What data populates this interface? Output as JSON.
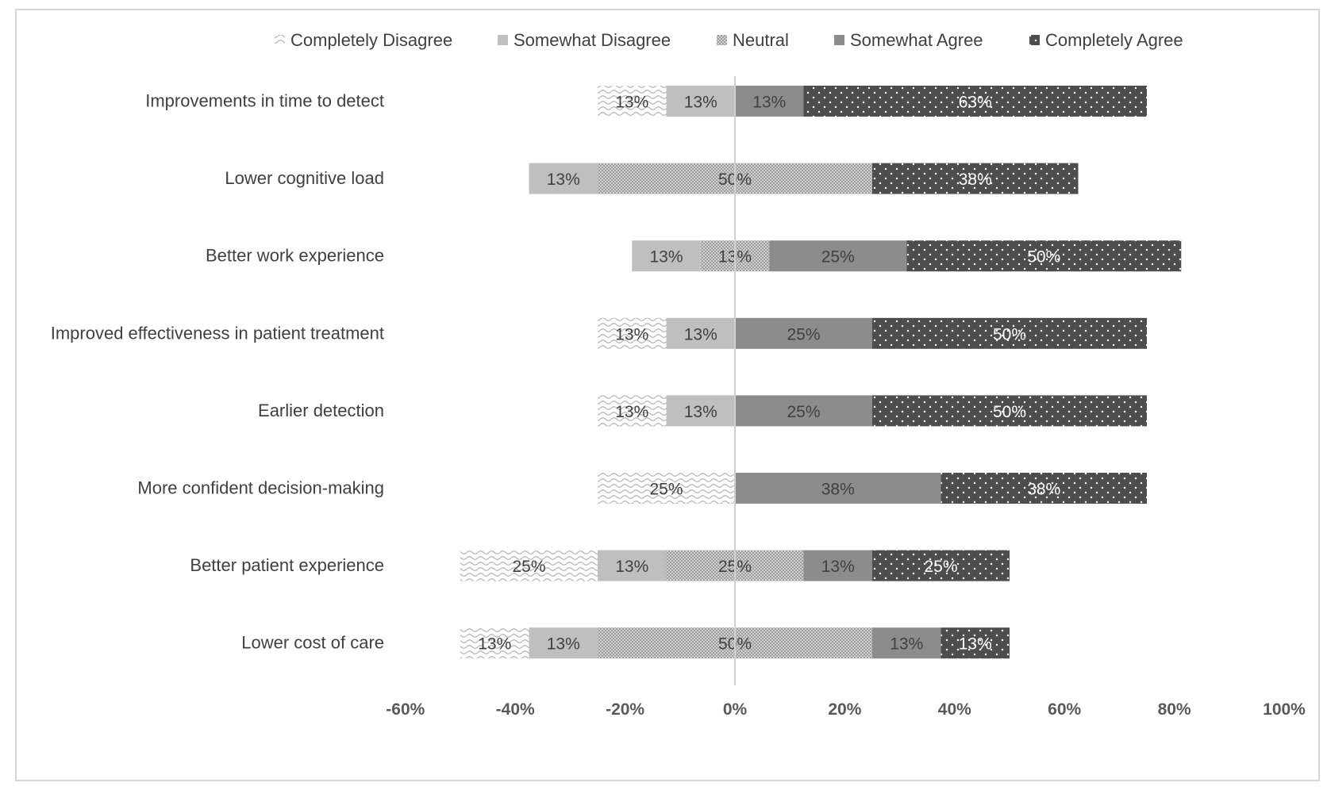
{
  "chart_data": {
    "type": "bar",
    "orientation": "horizontal",
    "stacking": "diverging",
    "title": "",
    "xlabel": "",
    "ylabel": "",
    "xlim": [
      -60,
      100
    ],
    "x_ticks": [
      -60,
      -40,
      -20,
      0,
      20,
      40,
      60,
      80,
      100
    ],
    "x_tick_labels": [
      "-60%",
      "-40%",
      "-20%",
      "0%",
      "20%",
      "40%",
      "60%",
      "80%",
      "100%"
    ],
    "grid": false,
    "legend_position": "top",
    "categories": [
      "Improvements in time to detect",
      "Lower cognitive load",
      "Better work experience",
      "Improved effectiveness in patient treatment",
      "Earlier detection",
      "More confident decision-making",
      "Better patient experience",
      "Lower cost of care"
    ],
    "series": [
      {
        "name": "Completely Disagree",
        "color": "#d9d9d9",
        "pattern": "wave",
        "values": [
          12.5,
          0,
          0,
          12.5,
          12.5,
          25,
          25,
          12.5
        ],
        "labels": [
          "13%",
          "",
          "",
          "13%",
          "13%",
          "25%",
          "25%",
          "13%"
        ]
      },
      {
        "name": "Somewhat Disagree",
        "color": "#bfbfbf",
        "pattern": "solid",
        "values": [
          12.5,
          12.5,
          12.5,
          12.5,
          12.5,
          0,
          12.5,
          12.5
        ],
        "labels": [
          "13%",
          "13%",
          "13%",
          "13%",
          "13%",
          "",
          "13%",
          "13%"
        ]
      },
      {
        "name": "Neutral",
        "color": "#ababab",
        "pattern": "checker",
        "values": [
          0,
          50,
          12.5,
          0,
          0,
          0,
          25,
          50
        ],
        "labels": [
          "",
          "50%",
          "13%",
          "",
          "",
          "",
          "25%",
          "50%"
        ]
      },
      {
        "name": "Somewhat Agree",
        "color": "#8c8c8c",
        "pattern": "solid",
        "values": [
          12.5,
          0,
          25,
          25,
          25,
          37.5,
          12.5,
          12.5
        ],
        "labels": [
          "13%",
          "",
          "25%",
          "25%",
          "25%",
          "38%",
          "13%",
          "13%"
        ]
      },
      {
        "name": "Completely Agree",
        "color": "#4d4d4d",
        "pattern": "dots",
        "values": [
          62.5,
          37.5,
          50,
          50,
          50,
          37.5,
          25,
          12.5
        ],
        "labels": [
          "63%",
          "38%",
          "50%",
          "50%",
          "50%",
          "38%",
          "25%",
          "13%"
        ]
      }
    ]
  }
}
